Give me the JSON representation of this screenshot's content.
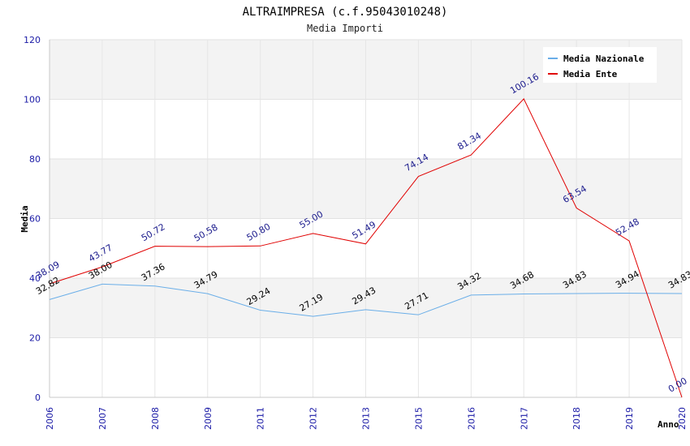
{
  "chart_data": {
    "type": "line",
    "title": "ALTRAIMPRESA (c.f.95043010248)",
    "subtitle": "Media Importi",
    "ylabel": "Media",
    "xlabel": "Anno",
    "ylim": [
      0,
      120
    ],
    "yticks": [
      "0",
      "20",
      "40",
      "60",
      "80",
      "100",
      "120"
    ],
    "categories": [
      "2006",
      "2007",
      "2008",
      "2009",
      "2011",
      "2012",
      "2013",
      "2015",
      "2016",
      "2017",
      "2018",
      "2019",
      "2020"
    ],
    "grid": true,
    "legend_position": "top-right",
    "series": [
      {
        "name": "Media Nazionale",
        "color": "#6aaee8",
        "values": [
          32.82,
          38.0,
          37.36,
          34.79,
          29.24,
          27.19,
          29.43,
          27.71,
          34.32,
          34.68,
          34.83,
          34.94,
          34.83
        ],
        "labels": [
          "32.82",
          "38.00",
          "37.36",
          "34.79",
          "29.24",
          "27.19",
          "29.43",
          "27.71",
          "34.32",
          "34.68",
          "34.83",
          "34.94",
          "34.83"
        ]
      },
      {
        "name": "Media Ente",
        "color": "#e00000",
        "values": [
          38.09,
          43.77,
          50.72,
          50.58,
          50.8,
          55.0,
          51.49,
          74.14,
          81.34,
          100.16,
          63.54,
          52.48,
          0.0
        ],
        "labels": [
          "38.09",
          "43.77",
          "50.72",
          "50.58",
          "50.80",
          "55.00",
          "51.49",
          "74.14",
          "81.34",
          "100.16",
          "63.54",
          "52.48",
          "0.00"
        ]
      }
    ]
  }
}
